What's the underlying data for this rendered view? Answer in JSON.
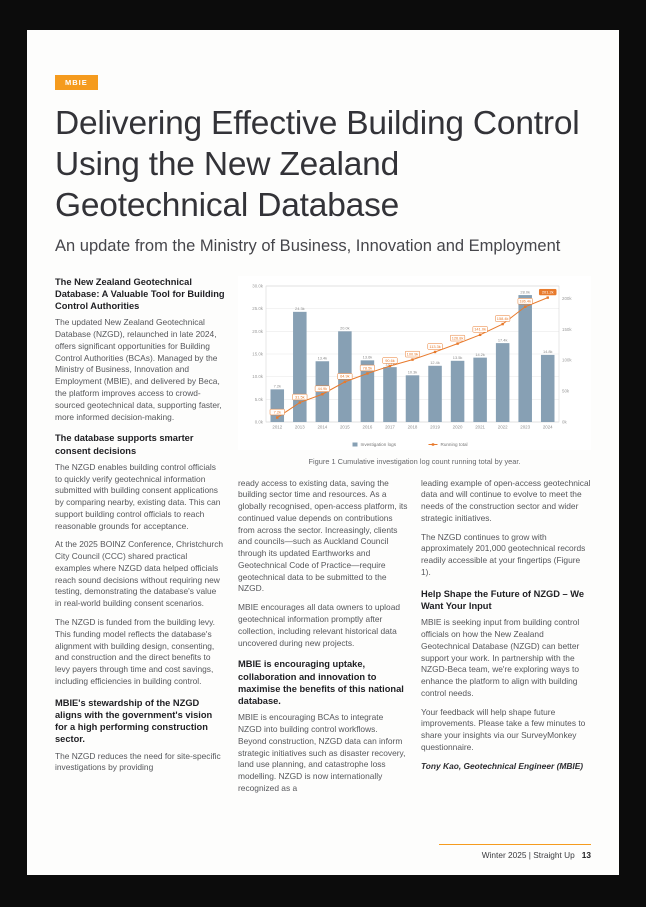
{
  "page": {
    "tag": "MBIE",
    "title": "Delivering Effective Building Control Using the New Zealand Geotechnical Database",
    "subtitle": "An update from the Ministry of Business, Innovation and Employment",
    "footer": {
      "text": "Winter 2025 | Straight Up",
      "page_number": "13"
    }
  },
  "figure": {
    "caption": "Figure 1 Cumulative investigation log count running total by year."
  },
  "chart_data": {
    "type": "bar",
    "title": "",
    "categories": [
      "2012",
      "2013",
      "2014",
      "2015",
      "2016",
      "2017",
      "2018",
      "2019",
      "2020",
      "2021",
      "2022",
      "2023",
      "2024"
    ],
    "series": [
      {
        "name": "Investigation logs",
        "type": "bar",
        "unit": "k",
        "color": "#87a0b4",
        "values": [
          7.2,
          24.3,
          13.4,
          20.0,
          13.6,
          12.1,
          10.3,
          12.4,
          13.5,
          14.2,
          17.4,
          28.0,
          14.8
        ]
      },
      {
        "name": "Running total",
        "type": "line",
        "unit": "k",
        "color": "#e87a2c",
        "values": [
          7.2,
          31.5,
          44.9,
          64.9,
          78.5,
          90.6,
          100.9,
          113.3,
          126.8,
          141.0,
          158.4,
          186.4,
          201.2
        ]
      }
    ],
    "left_axis": {
      "max": 30,
      "step": 5,
      "unit": "k"
    },
    "right_axis": {
      "max": 220,
      "ticks": [
        0,
        50,
        100,
        150,
        200
      ],
      "unit": "k"
    },
    "legend_position": "bottom",
    "grid": true
  },
  "columns": {
    "col1": {
      "h1": "The New Zealand Geotechnical Database: A Valuable Tool for Building Control Authorities",
      "p1": "The updated New Zealand Geotechnical Database (NZGD), relaunched in late 2024, offers significant opportunities for Building Control Authorities (BCAs). Managed by the Ministry of Business, Innovation and Employment (MBIE), and delivered by Beca, the platform improves access to crowd-sourced geotechnical data, supporting faster, more informed decision-making.",
      "h2": "The database supports smarter consent decisions",
      "p2": "The NZGD enables building control officials to quickly verify geotechnical information submitted with building consent applications by comparing nearby, existing data. This can support building control officials to reach reasonable grounds for acceptance.",
      "p3": "At the 2025 BOINZ Conference, Christchurch City Council (CCC) shared practical examples where NZGD data helped officials reach sound decisions without requiring new testing, demonstrating the database's value in real-world building consent scenarios.",
      "p4": "The NZGD is funded from the building levy. This funding model reflects the database's alignment with building design, consenting, and construction and the direct benefits to levy payers through time and cost savings, including efficiencies in building control.",
      "h3": "MBIE's stewardship of the NZGD aligns with the government's vision for a high performing construction sector.",
      "p5": "The NZGD reduces the need for site-specific investigations by providing"
    },
    "col2": {
      "p1": "ready access to existing data, saving the building sector time and resources. As a globally recognised, open-access platform, its continued value depends on contributions from across the sector. Increasingly, clients and councils—such as Auckland Council through its updated Earthworks and Geotechnical Code of Practice—require geotechnical data to be submitted to the NZGD.",
      "p2": "MBIE encourages all data owners to upload geotechnical information promptly after collection, including relevant historical data uncovered during new projects.",
      "h1": "MBIE is encouraging uptake, collaboration and innovation to maximise the benefits of this national database.",
      "p3": "MBIE is encouraging BCAs to integrate NZGD into building control workflows. Beyond construction, NZGD data can inform strategic initiatives such as disaster recovery, land use planning, and catastrophe loss modelling. NZGD is now internationally recognized as a"
    },
    "col3": {
      "p1": "leading example of open-access geotechnical data and will continue to evolve to meet the needs of the construction sector and wider strategic initiatives.",
      "p2": "The NZGD continues to grow with approximately 201,000 geotechnical records readily accessible at your fingertips (Figure 1).",
      "h1": "Help Shape the Future of NZGD – We Want Your Input",
      "p3": "MBIE is seeking input from building control officials on how the New Zealand Geotechnical Database (NZGD) can better support your work. In partnership with the NZGD-Beca team, we're exploring ways to enhance the platform to align with building control needs.",
      "p4": "Your feedback will help shape future improvements. Please take a few minutes to share your insights via our SurveyMonkey questionnaire.",
      "author": "Tony Kao, Geotechnical Engineer (MBIE)"
    }
  }
}
